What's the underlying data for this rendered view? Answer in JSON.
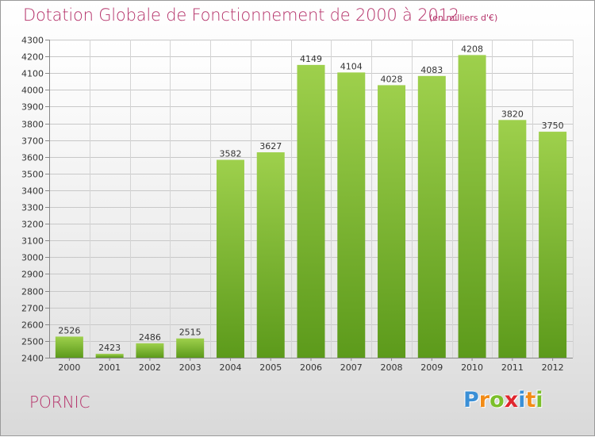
{
  "chart_data": {
    "type": "bar",
    "title": "Dotation Globale de Fonctionnement de 2000 à 2012",
    "subtitle": "(en milliers d'€)",
    "categories": [
      "2000",
      "2001",
      "2002",
      "2003",
      "2004",
      "2005",
      "2006",
      "2007",
      "2008",
      "2009",
      "2010",
      "2011",
      "2012"
    ],
    "values": [
      2526,
      2423,
      2486,
      2515,
      3582,
      3627,
      4149,
      4104,
      4028,
      4083,
      4208,
      3820,
      3750
    ],
    "ylim": [
      2400,
      4300
    ],
    "yticks": [
      2400,
      2500,
      2600,
      2700,
      2800,
      2900,
      3000,
      3100,
      3200,
      3300,
      3400,
      3500,
      3600,
      3700,
      3800,
      3900,
      4000,
      4100,
      4200,
      4300
    ],
    "grid": true,
    "bar_color": "#8cc43c",
    "bar_color_dark": "#5c9a1b",
    "title_color": "#b5326a"
  },
  "place": "PORNIC",
  "logo": {
    "letters": [
      "P",
      "r",
      "o",
      "x",
      "i",
      "t",
      "i"
    ],
    "colors": [
      "#3a8fd6",
      "#f28b16",
      "#7bbf2a",
      "#e0262e",
      "#3a8fd6",
      "#f28b16",
      "#7bbf2a"
    ]
  }
}
